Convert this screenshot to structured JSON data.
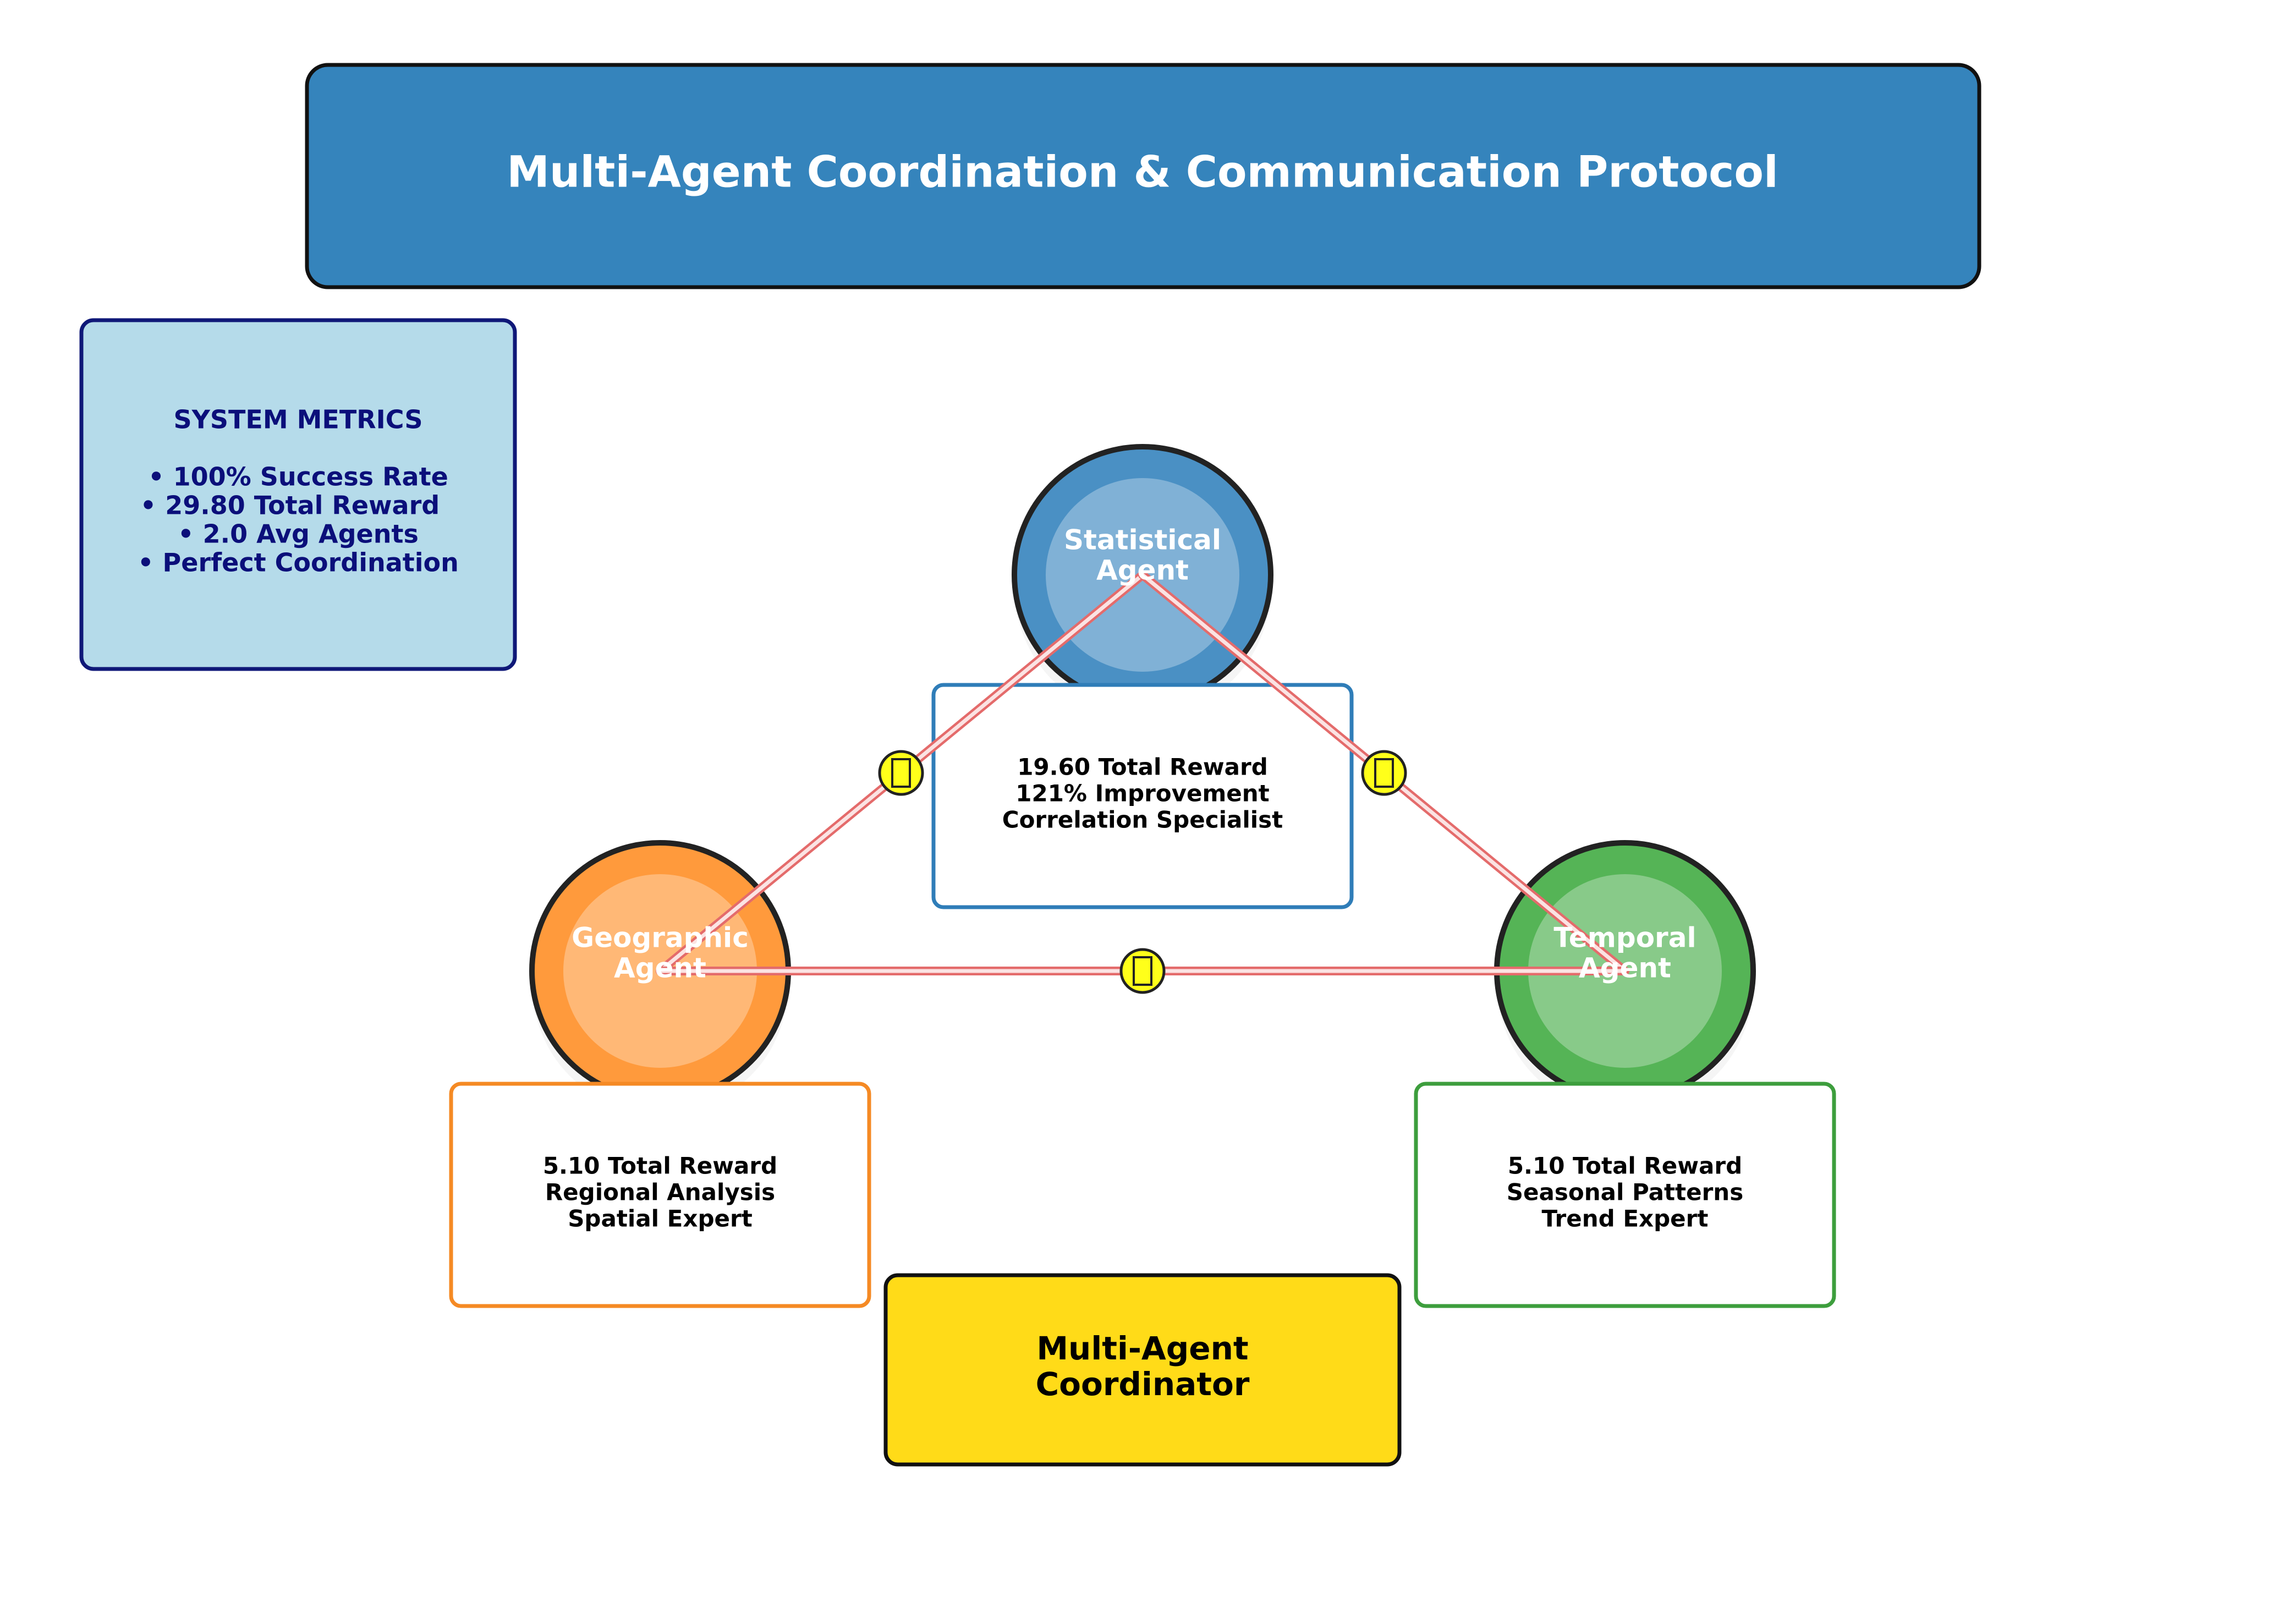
{
  "title": "Multi-Agent Coordination & Communication Protocol",
  "metrics": {
    "heading": "SYSTEM METRICS",
    "items": [
      "• 100% Success Rate",
      "• 29.80 Total Reward",
      "• 2.0 Avg Agents",
      "• Perfect Coordination"
    ]
  },
  "agents": {
    "statistical": {
      "name_line1": "Statistical",
      "name_line2": "Agent",
      "details": [
        "19.60 Total Reward",
        "121% Improvement",
        "Correlation Specialist"
      ],
      "color": "#4a90c4"
    },
    "geographic": {
      "name_line1": "Geographic",
      "name_line2": "Agent",
      "details": [
        "5.10 Total Reward",
        "Regional Analysis",
        "Spatial Expert"
      ],
      "color": "#ff9a3c"
    },
    "temporal": {
      "name_line1": "Temporal",
      "name_line2": "Agent",
      "details": [
        "5.10 Total Reward",
        "Seasonal Patterns",
        "Trend Expert"
      ],
      "color": "#55b456"
    }
  },
  "coordinator": {
    "line1": "Multi-Agent",
    "line2": "Coordinator"
  },
  "colors": {
    "title_bg": "#3584bc",
    "metrics_bg": "#b5dbea",
    "metrics_text": "#0b0f7a",
    "coordinator_bg": "#ffdb18",
    "link": "#e46b6b",
    "badge": "#ffff1a"
  },
  "icons": {
    "link_badge": "message-icon"
  }
}
